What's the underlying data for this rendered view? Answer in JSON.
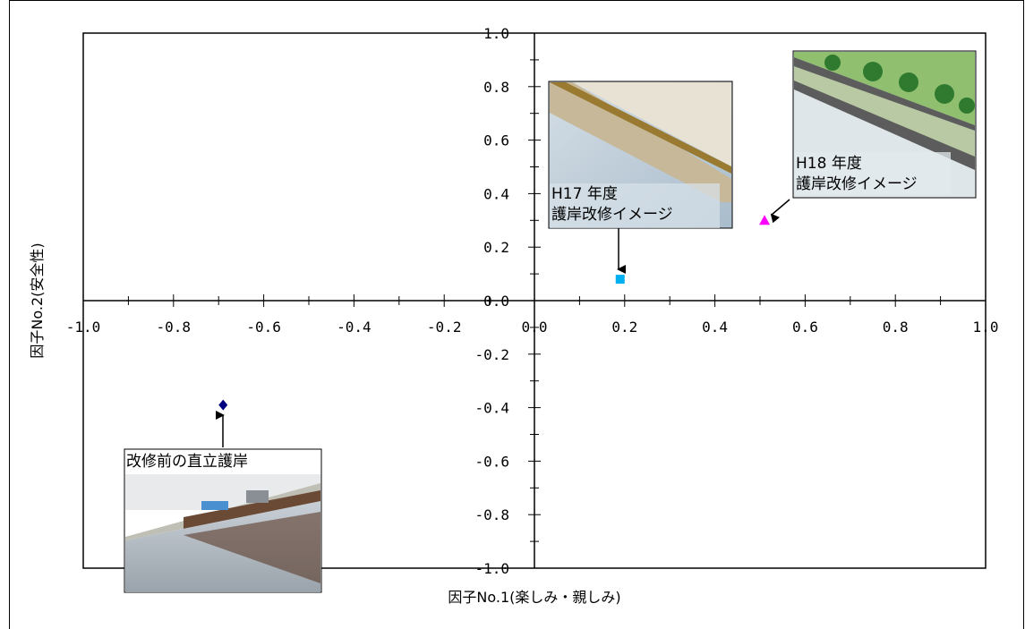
{
  "chart_data": {
    "type": "scatter",
    "xlabel": "因子No.1(楽しみ・親しみ)",
    "ylabel": "因子No.2(安全性)",
    "xlim": [
      -1.0,
      1.0
    ],
    "ylim": [
      -1.0,
      1.0
    ],
    "x_ticks": [
      "-1.0",
      "-0.8",
      "-0.6",
      "-0.4",
      "-0.2",
      "0.0",
      "0.2",
      "0.4",
      "0.6",
      "0.8",
      "1.0"
    ],
    "y_ticks": [
      "1.0",
      "0.8",
      "0.6",
      "0.4",
      "0.2",
      "0.0",
      "-0.2",
      "-0.4",
      "-0.6",
      "-0.8",
      "-1.0"
    ],
    "points": [
      {
        "x": -0.69,
        "y": -0.39,
        "marker": "diamond",
        "color": "#000080"
      },
      {
        "x": 0.19,
        "y": 0.08,
        "marker": "square",
        "color": "#00b0f0"
      },
      {
        "x": 0.51,
        "y": 0.3,
        "marker": "triangle",
        "color": "#ff00ff"
      }
    ],
    "annotations": [
      {
        "lines": [
          "改修前の直立護岸"
        ]
      },
      {
        "lines": [
          "H17 年度",
          "護岸改修イメージ"
        ]
      },
      {
        "lines": [
          "H18 年度",
          "護岸改修イメージ"
        ]
      }
    ],
    "grid": false,
    "legend": "none"
  }
}
